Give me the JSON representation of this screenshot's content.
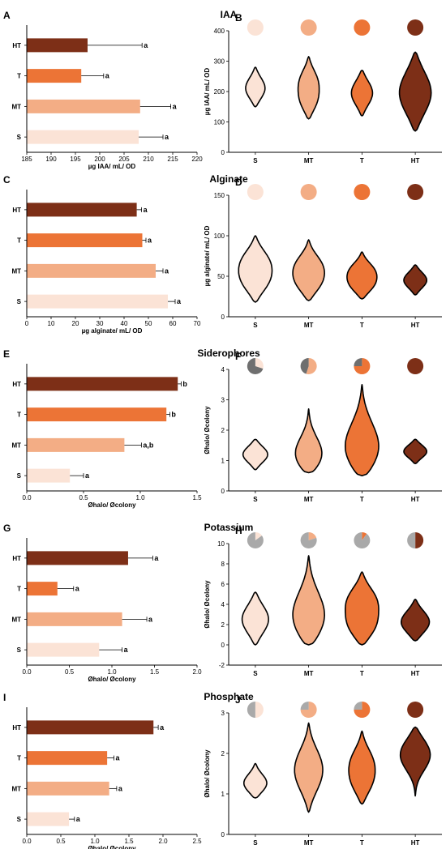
{
  "colors": {
    "S": "#fbe3d6",
    "MT": "#f3ad85",
    "T": "#ec7436",
    "HT": "#7d2f17",
    "pie_gray": "#a9a9a9",
    "pie_dark_gray": "#6f6f6f"
  },
  "chart_data": [
    {
      "panel": "A",
      "section_title": "IAA",
      "type": "bar",
      "orientation": "horizontal",
      "categories": [
        "HT",
        "T",
        "MT",
        "S"
      ],
      "values": [
        197.5,
        196.2,
        208.3,
        208.0
      ],
      "errors": [
        11.2,
        4.6,
        6.3,
        5.0
      ],
      "significance": [
        "a",
        "a",
        "a",
        "a"
      ],
      "xlabel": "µg IAA/ mL/ OD",
      "xlim": [
        185,
        220
      ],
      "xticks": [
        185,
        190,
        195,
        200,
        205,
        210,
        215,
        220
      ]
    },
    {
      "panel": "B",
      "type": "violin",
      "categories": [
        "S",
        "MT",
        "T",
        "HT"
      ],
      "ylabel": "µg IAA/ mL/ OD",
      "ylim": [
        0,
        400
      ],
      "yticks": [
        0,
        100,
        200,
        300,
        400
      ],
      "violins": [
        {
          "min": 150,
          "max": 280,
          "modes": [
            210
          ],
          "width": 0.55
        },
        {
          "min": 110,
          "max": 315,
          "modes": [
            165,
            240
          ],
          "width": 0.6
        },
        {
          "min": 120,
          "max": 270,
          "modes": [
            195
          ],
          "width": 0.6
        },
        {
          "min": 70,
          "max": 330,
          "modes": [
            195
          ],
          "width": 0.9
        }
      ],
      "pies": [
        {
          "slices": [
            1
          ],
          "colors": [
            "S"
          ]
        },
        {
          "slices": [
            1
          ],
          "colors": [
            "MT"
          ]
        },
        {
          "slices": [
            1
          ],
          "colors": [
            "T"
          ]
        },
        {
          "slices": [
            1
          ],
          "colors": [
            "HT"
          ]
        }
      ]
    },
    {
      "panel": "C",
      "section_title": "Alginate",
      "type": "bar",
      "orientation": "horizontal",
      "categories": [
        "HT",
        "T",
        "MT",
        "S"
      ],
      "values": [
        45.2,
        47.5,
        53.0,
        58.0
      ],
      "errors": [
        2.0,
        1.5,
        3.0,
        3.0
      ],
      "significance": [
        "a",
        "a",
        "a",
        "a"
      ],
      "xlabel": "µg alginate/ mL/ OD",
      "xlim": [
        0,
        70
      ],
      "xticks": [
        0,
        10,
        20,
        30,
        40,
        50,
        60,
        70
      ]
    },
    {
      "panel": "D",
      "type": "violin",
      "categories": [
        "S",
        "MT",
        "T",
        "HT"
      ],
      "ylabel": "µg alginate/ mL/ OD",
      "ylim": [
        0,
        150
      ],
      "yticks": [
        0,
        50,
        100,
        150
      ],
      "violins": [
        {
          "min": 18,
          "max": 100,
          "modes": [
            42,
            70
          ],
          "width": 0.95
        },
        {
          "min": 20,
          "max": 95,
          "modes": [
            40,
            65
          ],
          "width": 0.9
        },
        {
          "min": 22,
          "max": 80,
          "modes": [
            38,
            58
          ],
          "width": 0.85
        },
        {
          "min": 27,
          "max": 64,
          "modes": [
            45
          ],
          "width": 0.65
        }
      ],
      "pies": [
        {
          "slices": [
            1
          ],
          "colors": [
            "S"
          ]
        },
        {
          "slices": [
            1
          ],
          "colors": [
            "MT"
          ]
        },
        {
          "slices": [
            1
          ],
          "colors": [
            "T"
          ]
        },
        {
          "slices": [
            1
          ],
          "colors": [
            "HT"
          ]
        }
      ]
    },
    {
      "panel": "E",
      "section_title": "Siderophores",
      "type": "bar",
      "orientation": "horizontal",
      "categories": [
        "HT",
        "T",
        "MT",
        "S"
      ],
      "values": [
        1.33,
        1.23,
        0.86,
        0.38
      ],
      "errors": [
        0.03,
        0.03,
        0.15,
        0.12
      ],
      "significance": [
        "b",
        "b",
        "a,b",
        "a"
      ],
      "xlabel": "Øhalo/ Øcolony",
      "xlim": [
        0,
        1.5
      ],
      "xticks": [
        0.0,
        0.5,
        1.0,
        1.5
      ]
    },
    {
      "panel": "F",
      "type": "violin",
      "categories": [
        "S",
        "MT",
        "T",
        "HT"
      ],
      "ylabel": "Øhalo/ Øcolony",
      "ylim": [
        0,
        4
      ],
      "yticks": [
        0,
        1,
        2,
        3,
        4
      ],
      "violins": [
        {
          "min": 0.7,
          "max": 1.7,
          "modes": [
            1.2
          ],
          "width": 0.7
        },
        {
          "min": 0.6,
          "max": 2.7,
          "modes": [
            1.1
          ],
          "width": 0.75
        },
        {
          "min": 0.5,
          "max": 3.5,
          "modes": [
            1.3
          ],
          "width": 0.95
        },
        {
          "min": 0.9,
          "max": 1.7,
          "modes": [
            1.3
          ],
          "width": 0.65
        }
      ],
      "pies": [
        {
          "slices": [
            0.3,
            0.7
          ],
          "colors": [
            "S",
            "pie_dark_gray"
          ]
        },
        {
          "slices": [
            0.55,
            0.45
          ],
          "colors": [
            "MT",
            "pie_dark_gray"
          ]
        },
        {
          "slices": [
            0.75,
            0.25
          ],
          "colors": [
            "T",
            "pie_dark_gray"
          ]
        },
        {
          "slices": [
            1
          ],
          "colors": [
            "HT"
          ]
        }
      ]
    },
    {
      "panel": "G",
      "section_title": "Potassium",
      "type": "bar",
      "orientation": "horizontal",
      "categories": [
        "HT",
        "T",
        "MT",
        "S"
      ],
      "values": [
        1.19,
        0.36,
        1.12,
        0.85
      ],
      "errors": [
        0.29,
        0.19,
        0.29,
        0.27
      ],
      "significance": [
        "a",
        "a",
        "a",
        "a"
      ],
      "xlabel": "Øhalo/ Øcolony",
      "xlim": [
        0,
        2.0
      ],
      "xticks": [
        0.0,
        0.5,
        1.0,
        1.5,
        2.0
      ]
    },
    {
      "panel": "H",
      "type": "violin",
      "categories": [
        "S",
        "MT",
        "T",
        "HT"
      ],
      "ylabel": "Øhalo/ Øcolony",
      "ylim": [
        -2,
        10
      ],
      "yticks": [
        -2,
        0,
        2,
        4,
        6,
        8,
        10
      ],
      "violins": [
        {
          "min": 0.0,
          "max": 5.2,
          "modes": [
            2.5
          ],
          "width": 0.75
        },
        {
          "min": 0.0,
          "max": 8.8,
          "modes": [
            2.5
          ],
          "width": 0.9
        },
        {
          "min": 0.0,
          "max": 7.2,
          "modes": [
            1.7,
            4.5
          ],
          "width": 0.95
        },
        {
          "min": 0.4,
          "max": 4.5,
          "modes": [
            2.2
          ],
          "width": 0.8
        }
      ],
      "pies": [
        {
          "slices": [
            0.15,
            0.85
          ],
          "colors": [
            "S",
            "pie_gray"
          ]
        },
        {
          "slices": [
            0.2,
            0.8
          ],
          "colors": [
            "MT",
            "pie_gray"
          ]
        },
        {
          "slices": [
            0.1,
            0.9
          ],
          "colors": [
            "T",
            "pie_gray"
          ]
        },
        {
          "slices": [
            0.5,
            0.5
          ],
          "colors": [
            "HT",
            "pie_gray"
          ]
        }
      ]
    },
    {
      "panel": "I",
      "section_title": "Phosphate",
      "type": "bar",
      "orientation": "horizontal",
      "categories": [
        "HT",
        "T",
        "MT",
        "S"
      ],
      "values": [
        1.86,
        1.18,
        1.21,
        0.62
      ],
      "errors": [
        0.07,
        0.1,
        0.11,
        0.08
      ],
      "significance": [
        "a",
        "a",
        "a",
        "a"
      ],
      "xlabel": "Øhalo/ Øcolony",
      "xlim": [
        0,
        2.5
      ],
      "xticks": [
        0.0,
        0.5,
        1.0,
        1.5,
        2.0,
        2.5
      ]
    },
    {
      "panel": "J",
      "type": "violin",
      "categories": [
        "S",
        "MT",
        "T",
        "HT"
      ],
      "ylabel": "Øhalo/ Øcolony",
      "ylim": [
        0,
        3
      ],
      "yticks": [
        0,
        1,
        2,
        3
      ],
      "violins": [
        {
          "min": 0.9,
          "max": 1.75,
          "modes": [
            1.25
          ],
          "width": 0.65
        },
        {
          "min": 0.55,
          "max": 2.75,
          "modes": [
            1.3,
            1.85
          ],
          "width": 0.8
        },
        {
          "min": 0.75,
          "max": 2.55,
          "modes": [
            1.25,
            1.85
          ],
          "width": 0.75
        },
        {
          "min": 0.95,
          "max": 2.65,
          "modes": [
            1.8,
            2.2
          ],
          "width": 0.85
        }
      ],
      "pies": [
        {
          "slices": [
            0.5,
            0.5
          ],
          "colors": [
            "S",
            "pie_gray"
          ]
        },
        {
          "slices": [
            0.75,
            0.25
          ],
          "colors": [
            "MT",
            "pie_gray"
          ]
        },
        {
          "slices": [
            0.75,
            0.25
          ],
          "colors": [
            "T",
            "pie_gray"
          ]
        },
        {
          "slices": [
            1
          ],
          "colors": [
            "HT"
          ]
        }
      ]
    }
  ]
}
